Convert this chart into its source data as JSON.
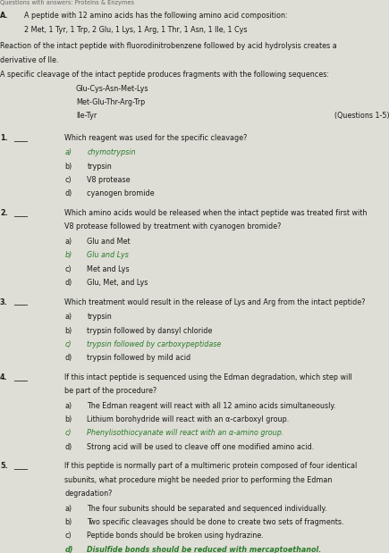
{
  "bg_color": "#deded6",
  "text_color": "#1a1a1a",
  "green_color": "#2a7a2a",
  "header": "Questions with answers: Proteins & Enzymes",
  "section_label": "A.",
  "section_line1": "A peptide with 12 amino acids has the following amino acid composition:",
  "section_line2": "2 Met, 1 Tyr, 1 Trp, 2 Glu, 1 Lys, 1 Arg, 1 Thr, 1 Asn, 1 Ile, 1 Cys",
  "para1_line1": "Reaction of the intact peptide with fluorodinitrobenzene followed by acid hydrolysis creates a",
  "para1_line2": "derivative of Ile.",
  "para2": "A specific cleavage of the intact peptide produces fragments with the following sequences:",
  "fragments": [
    "Glu-Cys-Asn-Met-Lys",
    "Met-Glu-Thr-Arg-Trp",
    "Ile-Tyr"
  ],
  "questions_label": "(Questions 1-5)",
  "questions": [
    {
      "num": "1.",
      "blank": "____",
      "qlines": [
        "Which reagent was used for the specific cleavage?"
      ],
      "options": [
        {
          "label": "a)",
          "text": "chymotrypsin",
          "italic": true,
          "green": true,
          "bold": false
        },
        {
          "label": "b)",
          "text": "trypsin",
          "italic": false,
          "green": false,
          "bold": false
        },
        {
          "label": "c)",
          "text": "V8 protease",
          "italic": false,
          "green": false,
          "bold": false
        },
        {
          "label": "d)",
          "text": "cyanogen bromide",
          "italic": false,
          "green": false,
          "bold": false
        }
      ]
    },
    {
      "num": "2.",
      "blank": "____",
      "qlines": [
        "Which amino acids would be released when the intact peptide was treated first with",
        "V8 protease followed by treatment with cyanogen bromide?"
      ],
      "options": [
        {
          "label": "a)",
          "text": "Glu and Met",
          "italic": false,
          "green": false,
          "bold": false
        },
        {
          "label": "b)",
          "text": "Glu and Lys",
          "italic": true,
          "green": true,
          "bold": false
        },
        {
          "label": "c)",
          "text": "Met and Lys",
          "italic": false,
          "green": false,
          "bold": false
        },
        {
          "label": "d)",
          "text": "Glu, Met, and Lys",
          "italic": false,
          "green": false,
          "bold": false
        }
      ]
    },
    {
      "num": "3.",
      "blank": "____",
      "qlines": [
        "Which treatment would result in the release of Lys and Arg from the intact peptide?"
      ],
      "options": [
        {
          "label": "a)",
          "text": "trypsin",
          "italic": false,
          "green": false,
          "bold": false
        },
        {
          "label": "b)",
          "text": "trypsin followed by dansyl chloride",
          "italic": false,
          "green": false,
          "bold": false
        },
        {
          "label": "c)",
          "text": "trypsin followed by carboxypeptidase",
          "italic": true,
          "green": true,
          "bold": false
        },
        {
          "label": "d)",
          "text": "trypsin followed by mild acid",
          "italic": false,
          "green": false,
          "bold": false
        }
      ]
    },
    {
      "num": "4.",
      "blank": "____",
      "qlines": [
        "If this intact peptide is sequenced using the Edman degradation, which step will",
        "be part of the procedure?"
      ],
      "options": [
        {
          "label": "a)",
          "text": "The Edman reagent will react with all 12 amino acids simultaneously.",
          "italic": false,
          "green": false,
          "bold": false
        },
        {
          "label": "b)",
          "text": "Lithium borohydride will react with an α-carboxyl group.",
          "italic": false,
          "green": false,
          "bold": false
        },
        {
          "label": "c)",
          "text": "Phenylisothiocyanate will react with an α-amino group.",
          "italic": true,
          "green": true,
          "bold": false
        },
        {
          "label": "d)",
          "text": "Strong acid will be used to cleave off one modified amino acid.",
          "italic": false,
          "green": false,
          "bold": false
        }
      ]
    },
    {
      "num": "5.",
      "blank": "____",
      "qlines": [
        "If this peptide is normally part of a multimeric protein composed of four identical",
        "subunits, what procedure might be needed prior to performing the Edman",
        "degradation?"
      ],
      "options": [
        {
          "label": "a)",
          "text": "The four subunits should be separated and sequenced individually.",
          "italic": false,
          "green": false,
          "bold": false
        },
        {
          "label": "b)",
          "text": "Two specific cleavages should be done to create two sets of fragments.",
          "italic": false,
          "green": false,
          "bold": false
        },
        {
          "label": "c)",
          "text": "Peptide bonds should be broken using hydrazine.",
          "italic": false,
          "green": false,
          "bold": false
        },
        {
          "label": "d)",
          "text": "Disulfide bonds should be reduced with mercaptoethanol.",
          "italic": true,
          "green": true,
          "bold": true
        }
      ]
    }
  ]
}
